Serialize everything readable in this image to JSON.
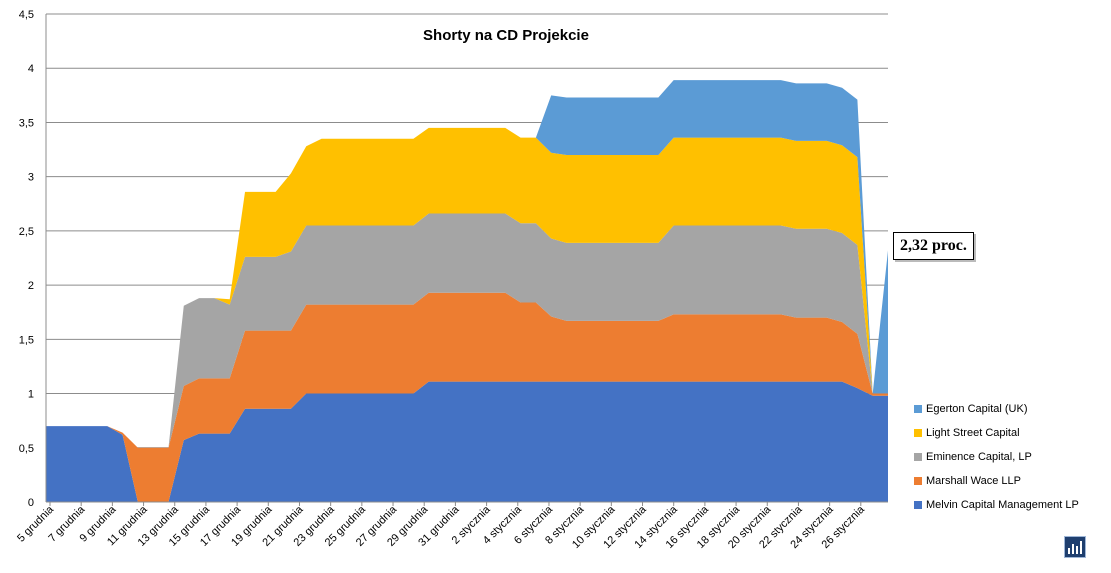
{
  "chart_data": {
    "type": "area",
    "stacked": true,
    "title": "Shorty na CD Projekcie",
    "xlabel": "",
    "ylabel": "",
    "ylim": [
      0,
      4.5
    ],
    "yticks": [
      "0",
      "0,5",
      "1",
      "1,5",
      "2",
      "2,5",
      "3",
      "3,5",
      "4",
      "4,5"
    ],
    "grid": "horizontal",
    "legend_position": "right",
    "x_tick_labels": [
      "5 grudnia",
      "7 grudnia",
      "9 grudnia",
      "11 grudnia",
      "13 grudnia",
      "15 grudnia",
      "17 grudnia",
      "19 grudnia",
      "21 grudnia",
      "23 grudnia",
      "25 grudnia",
      "27 grudnia",
      "29 grudnia",
      "31 grudnia",
      "2 stycznia",
      "4 stycznia",
      "6 stycznia",
      "8 stycznia",
      "10 stycznia",
      "12 stycznia",
      "14 stycznia",
      "16 stycznia",
      "18 stycznia",
      "20 stycznia",
      "22 stycznia",
      "24 stycznia",
      "26 stycznia"
    ],
    "series": [
      {
        "name": "Melvin Capital  Management  LP",
        "color": "#4472c4",
        "values": [
          0.7,
          0.7,
          0.7,
          0.7,
          0.7,
          0.62,
          0,
          0,
          0,
          0.57,
          0.63,
          0.63,
          0.63,
          0.86,
          0.86,
          0.86,
          0.86,
          1.0,
          1.0,
          1.0,
          1.0,
          1.0,
          1.0,
          1.0,
          1.0,
          1.11,
          1.11,
          1.11,
          1.11,
          1.11,
          1.11,
          1.11,
          1.11,
          1.11,
          1.11,
          1.11,
          1.11,
          1.11,
          1.11,
          1.11,
          1.11,
          1.11,
          1.11,
          1.11,
          1.11,
          1.11,
          1.11,
          1.11,
          1.11,
          1.11,
          1.11,
          1.11,
          1.11,
          1.05,
          0.98,
          0.98
        ]
      },
      {
        "name": "Marshall Wace LLP",
        "color": "#ed7d31",
        "values": [
          0,
          0,
          0,
          0,
          0,
          0.02,
          0.5,
          0.5,
          0.5,
          0.5,
          0.51,
          0.51,
          0.51,
          0.72,
          0.72,
          0.72,
          0.72,
          0.82,
          0.82,
          0.82,
          0.82,
          0.82,
          0.82,
          0.82,
          0.82,
          0.82,
          0.82,
          0.82,
          0.82,
          0.82,
          0.82,
          0.73,
          0.73,
          0.6,
          0.56,
          0.56,
          0.56,
          0.56,
          0.56,
          0.56,
          0.56,
          0.62,
          0.62,
          0.62,
          0.62,
          0.62,
          0.62,
          0.62,
          0.62,
          0.59,
          0.59,
          0.59,
          0.55,
          0.5,
          0.02,
          0.02
        ]
      },
      {
        "name": "Eminence Capital,  LP",
        "color": "#a5a5a5",
        "values": [
          0,
          0,
          0,
          0,
          0,
          0,
          0,
          0,
          0,
          0.74,
          0.74,
          0.74,
          0.68,
          0.68,
          0.68,
          0.68,
          0.73,
          0.73,
          0.73,
          0.73,
          0.73,
          0.73,
          0.73,
          0.73,
          0.73,
          0.73,
          0.73,
          0.73,
          0.73,
          0.73,
          0.73,
          0.73,
          0.73,
          0.72,
          0.72,
          0.72,
          0.72,
          0.72,
          0.72,
          0.72,
          0.72,
          0.82,
          0.82,
          0.82,
          0.82,
          0.82,
          0.82,
          0.82,
          0.82,
          0.82,
          0.82,
          0.82,
          0.82,
          0.82,
          0.0,
          0.0
        ]
      },
      {
        "name": "Light Street Capital",
        "color": "#ffc000",
        "values": [
          0,
          0,
          0,
          0,
          0,
          0,
          0,
          0,
          0,
          0,
          0,
          0,
          0.05,
          0.6,
          0.6,
          0.6,
          0.72,
          0.73,
          0.8,
          0.8,
          0.8,
          0.8,
          0.8,
          0.8,
          0.8,
          0.79,
          0.79,
          0.79,
          0.79,
          0.79,
          0.79,
          0.79,
          0.79,
          0.79,
          0.81,
          0.81,
          0.81,
          0.81,
          0.81,
          0.81,
          0.81,
          0.81,
          0.81,
          0.81,
          0.81,
          0.81,
          0.81,
          0.81,
          0.81,
          0.81,
          0.81,
          0.81,
          0.81,
          0.81,
          0.0,
          0.0
        ]
      },
      {
        "name": "Egerton Capital (UK)",
        "color": "#5b9bd5",
        "values": [
          0,
          0,
          0,
          0,
          0,
          0,
          0,
          0,
          0,
          0,
          0,
          0,
          0,
          0,
          0,
          0,
          0,
          0,
          0,
          0,
          0,
          0,
          0,
          0,
          0,
          0,
          0,
          0,
          0,
          0,
          0,
          0,
          0,
          0.53,
          0.53,
          0.53,
          0.53,
          0.53,
          0.53,
          0.53,
          0.53,
          0.53,
          0.53,
          0.53,
          0.53,
          0.53,
          0.53,
          0.53,
          0.53,
          0.53,
          0.53,
          0.53,
          0.53,
          0.53,
          0.0,
          1.32
        ]
      }
    ],
    "annotation": "2,32 proc."
  }
}
